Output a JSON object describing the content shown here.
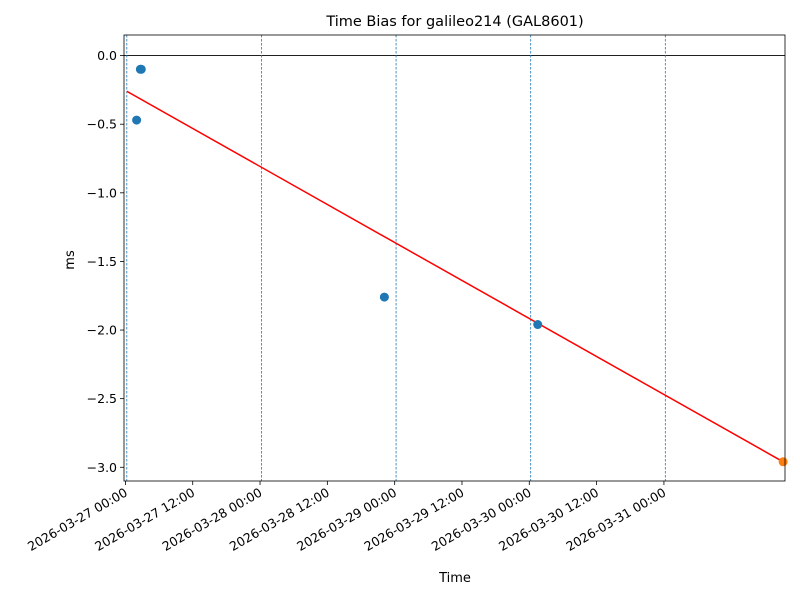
{
  "chart_data": {
    "type": "scatter",
    "title": "Time Bias for galileo214 (GAL8601)",
    "xlabel": "Time",
    "ylabel": "ms",
    "x_axis": {
      "kind": "datetime",
      "range": [
        "2026-03-26 23:45",
        "2026-03-31 21:35"
      ],
      "ticks": [
        "2026-03-27 00:00",
        "2026-03-27 12:00",
        "2026-03-28 00:00",
        "2026-03-28 12:00",
        "2026-03-29 00:00",
        "2026-03-29 12:00",
        "2026-03-30 00:00",
        "2026-03-30 12:00",
        "2026-03-31 00:00"
      ],
      "tick_labels": [
        "2026-03-27 00:00",
        "2026-03-27 12:00",
        "2026-03-28 00:00",
        "2026-03-28 12:00",
        "2026-03-29 00:00",
        "2026-03-29 12:00",
        "2026-03-30 00:00",
        "2026-03-30 12:00",
        "2026-03-31 00:00"
      ]
    },
    "y_axis": {
      "range": [
        -3.1,
        0.15
      ],
      "ticks": [
        0.0,
        -0.5,
        -1.0,
        -1.5,
        -2.0,
        -2.5,
        -3.0
      ],
      "tick_labels": [
        "0.0",
        "−0.5",
        "−1.0",
        "−1.5",
        "−2.0",
        "−2.5",
        "−3.0"
      ]
    },
    "grid": "vertical dashed lines at day boundaries",
    "reference_lines": [
      {
        "orientation": "horizontal",
        "y": 0.0,
        "color": "#000000"
      },
      {
        "orientation": "vertical",
        "x": "2026-03-27 00:15",
        "color": "#1f77b4",
        "style": "dashed"
      },
      {
        "orientation": "vertical",
        "x": "2026-03-28 00:15",
        "color": "#1f77b4",
        "style": "dashed"
      },
      {
        "orientation": "vertical",
        "x": "2026-03-29 00:15",
        "color": "#1f77b4",
        "style": "dashed"
      },
      {
        "orientation": "vertical",
        "x": "2026-03-30 00:15",
        "color": "#1f77b4",
        "style": "dashed"
      },
      {
        "orientation": "vertical",
        "x": "2026-03-31 00:15",
        "color": "#1f77b4",
        "style": "dashed"
      }
    ],
    "series": [
      {
        "color": "#1f77b4",
        "marker": "circle",
        "points": [
          {
            "x": "2026-03-27 02:00",
            "y": -0.47
          },
          {
            "x": "2026-03-27 02:40",
            "y": -0.1
          },
          {
            "x": "2026-03-27 02:50",
            "y": -0.1
          },
          {
            "x": "2026-03-28 22:10",
            "y": -1.76
          },
          {
            "x": "2026-03-30 01:30",
            "y": -1.96
          }
        ]
      },
      {
        "color": "#ff7f0e",
        "marker": "circle",
        "points": [
          {
            "x": "2026-03-31 21:15",
            "y": -2.96
          }
        ]
      }
    ],
    "trend_line": {
      "color": "#ff0000",
      "from": {
        "x": "2026-03-27 00:15",
        "y": -0.26
      },
      "to": {
        "x": "2026-03-31 21:15",
        "y": -2.96
      }
    }
  }
}
